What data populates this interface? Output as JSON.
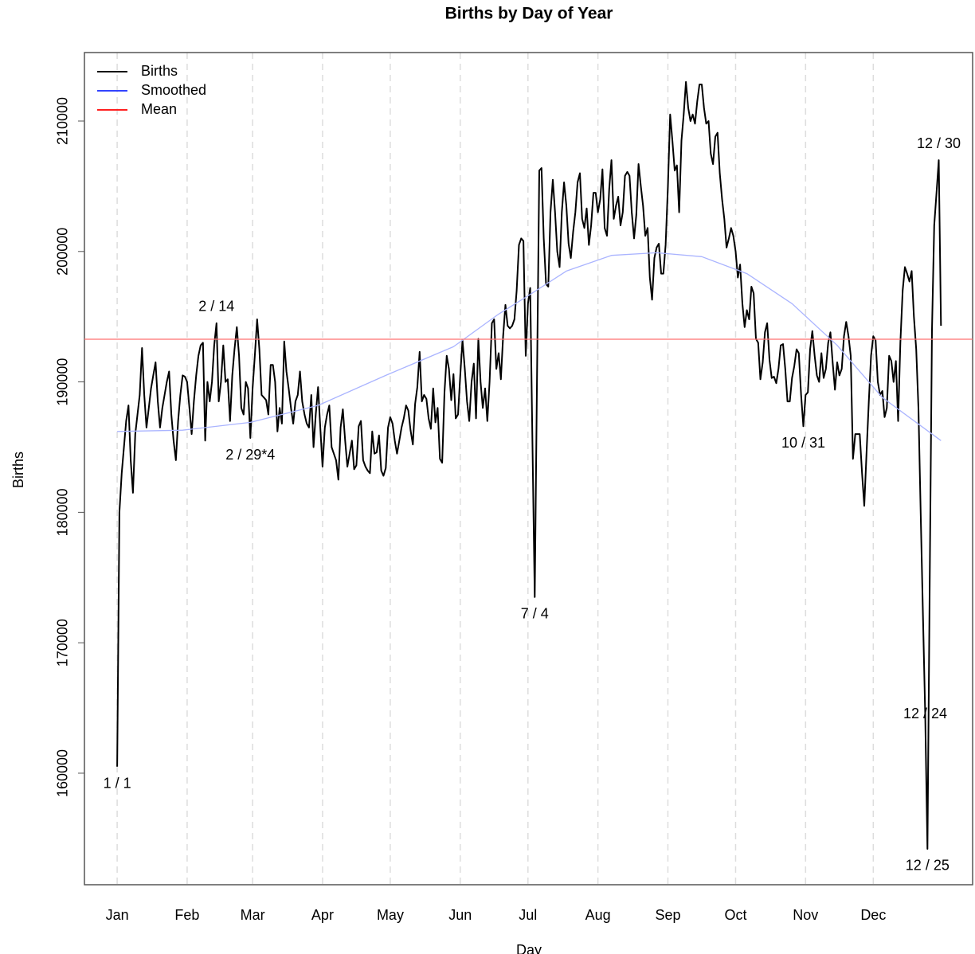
{
  "chart_data": {
    "type": "line",
    "title": "Births by Day of Year",
    "x_label": "Day",
    "y_label": "Births",
    "xlim": [
      -13.5,
      380
    ],
    "ylim": [
      151450,
      215250
    ],
    "xticks": [
      {
        "value": 1,
        "label": "Jan"
      },
      {
        "value": 32,
        "label": "Feb"
      },
      {
        "value": 61,
        "label": "Mar"
      },
      {
        "value": 92,
        "label": "Apr"
      },
      {
        "value": 122,
        "label": "May"
      },
      {
        "value": 153,
        "label": "Jun"
      },
      {
        "value": 183,
        "label": "Jul"
      },
      {
        "value": 214,
        "label": "Aug"
      },
      {
        "value": 245,
        "label": "Sep"
      },
      {
        "value": 275,
        "label": "Oct"
      },
      {
        "value": 306,
        "label": "Nov"
      },
      {
        "value": 336,
        "label": "Dec"
      }
    ],
    "yticks": [
      160000,
      170000,
      180000,
      190000,
      200000,
      210000
    ],
    "grid": true,
    "legend": "topleft",
    "series": [
      {
        "name": "Births",
        "color": "#000000",
        "x": [
          1,
          2,
          3,
          4,
          5,
          6,
          7,
          8,
          9,
          10,
          11,
          12,
          13,
          14,
          15,
          16,
          17,
          18,
          19,
          20,
          21,
          22,
          23,
          24,
          25,
          26,
          27,
          28,
          29,
          30,
          31,
          32,
          33,
          34,
          35,
          36,
          37,
          38,
          39,
          40,
          41,
          42,
          43,
          44,
          45,
          46,
          47,
          48,
          49,
          50,
          51,
          52,
          53,
          54,
          55,
          56,
          57,
          58,
          59,
          60,
          61,
          62,
          63,
          64,
          65,
          66,
          67,
          68,
          69,
          70,
          71,
          72,
          73,
          74,
          75,
          76,
          77,
          78,
          79,
          80,
          81,
          82,
          83,
          84,
          85,
          86,
          87,
          88,
          89,
          90,
          91,
          92,
          93,
          94,
          95,
          96,
          97,
          98,
          99,
          100,
          101,
          102,
          103,
          104,
          105,
          106,
          107,
          108,
          109,
          110,
          111,
          112,
          113,
          114,
          115,
          116,
          117,
          118,
          119,
          120,
          121,
          122,
          123,
          124,
          125,
          126,
          127,
          128,
          129,
          130,
          131,
          132,
          133,
          134,
          135,
          136,
          137,
          138,
          139,
          140,
          141,
          142,
          143,
          144,
          145,
          146,
          147,
          148,
          149,
          150,
          151,
          152,
          153,
          154,
          155,
          156,
          157,
          158,
          159,
          160,
          161,
          162,
          163,
          164,
          165,
          166,
          167,
          168,
          169,
          170,
          171,
          172,
          173,
          174,
          175,
          176,
          177,
          178,
          179,
          180,
          181,
          182,
          183,
          184,
          185,
          186,
          187,
          188,
          189,
          190,
          191,
          192,
          193,
          194,
          195,
          196,
          197,
          198,
          199,
          200,
          201,
          202,
          203,
          204,
          205,
          206,
          207,
          208,
          209,
          210,
          211,
          212,
          213,
          214,
          215,
          216,
          217,
          218,
          219,
          220,
          221,
          222,
          223,
          224,
          225,
          226,
          227,
          228,
          229,
          230,
          231,
          232,
          233,
          234,
          235,
          236,
          237,
          238,
          239,
          240,
          241,
          242,
          243,
          244,
          245,
          246,
          247,
          248,
          249,
          250,
          251,
          252,
          253,
          254,
          255,
          256,
          257,
          258,
          259,
          260,
          261,
          262,
          263,
          264,
          265,
          266,
          267,
          268,
          269,
          270,
          271,
          272,
          273,
          274,
          275,
          276,
          277,
          278,
          279,
          280,
          281,
          282,
          283,
          284,
          285,
          286,
          287,
          288,
          289,
          290,
          291,
          292,
          293,
          294,
          295,
          296,
          297,
          298,
          299,
          300,
          301,
          302,
          303,
          304,
          305,
          306,
          307,
          308,
          309,
          310,
          311,
          312,
          313,
          314,
          315,
          316,
          317,
          318,
          319,
          320,
          321,
          322,
          323,
          324,
          325,
          326,
          327,
          328,
          329,
          330,
          331,
          332,
          333,
          334,
          335,
          336,
          337,
          338,
          339,
          340,
          341,
          342,
          343,
          344,
          345,
          346,
          347,
          348,
          349,
          350,
          351,
          352,
          353,
          354,
          355,
          356,
          357,
          358,
          359,
          360,
          361,
          362,
          363,
          364,
          365,
          366
        ],
        "values": [
          160500,
          180000,
          183000,
          185000,
          187000,
          188200,
          184000,
          181500,
          186000,
          187500,
          189000,
          192600,
          189000,
          186500,
          188000,
          189500,
          190500,
          191500,
          188500,
          186500,
          188000,
          189000,
          190000,
          190800,
          187500,
          185500,
          184000,
          187000,
          189000,
          190500,
          190400,
          190000,
          188000,
          186000,
          188500,
          190500,
          192000,
          192800,
          193000,
          185500,
          190000,
          188500,
          190000,
          192800,
          194500,
          188500,
          190000,
          192800,
          190000,
          190200,
          187000,
          190500,
          192500,
          194200,
          192000,
          188000,
          187500,
          190000,
          189500,
          185700,
          189500,
          192000,
          194800,
          192500,
          189000,
          188800,
          188600,
          187500,
          191300,
          191300,
          190000,
          186200,
          188000,
          186800,
          193100,
          190800,
          189500,
          188000,
          186800,
          188500,
          189000,
          190800,
          188500,
          187500,
          186800,
          186500,
          189000,
          185000,
          187500,
          189600,
          186500,
          183500,
          186500,
          187500,
          188200,
          185000,
          184500,
          184000,
          182500,
          186500,
          187900,
          185500,
          183500,
          184500,
          185500,
          183300,
          183600,
          186600,
          187000,
          184000,
          183500,
          183200,
          183000,
          186200,
          184500,
          184600,
          185900,
          183200,
          182800,
          183400,
          186500,
          187300,
          186800,
          185500,
          184500,
          185500,
          186500,
          187200,
          188200,
          187800,
          186300,
          185200,
          188300,
          189600,
          192300,
          188500,
          189000,
          188700,
          187200,
          186400,
          189500,
          186900,
          188000,
          184100,
          183800,
          189200,
          192000,
          191000,
          188600,
          190600,
          187200,
          187500,
          190500,
          193200,
          191000,
          188500,
          187000,
          190000,
          191400,
          187200,
          193300,
          190000,
          188000,
          189500,
          187000,
          190000,
          194500,
          194800,
          191000,
          192200,
          190200,
          193500,
          195900,
          194300,
          194100,
          194300,
          194800,
          197000,
          200500,
          201000,
          200800,
          192000,
          196000,
          197200,
          185000,
          173500,
          190000,
          206200,
          206400,
          201000,
          197500,
          197300,
          203000,
          205500,
          203000,
          200000,
          198800,
          203000,
          205300,
          203500,
          200600,
          199500,
          201500,
          203000,
          205300,
          206000,
          202500,
          201800,
          203300,
          200500,
          202000,
          204500,
          204500,
          203000,
          204000,
          206300,
          201800,
          201200,
          204800,
          207000,
          202500,
          203500,
          204200,
          202000,
          203000,
          205800,
          206100,
          205800,
          203000,
          201000,
          202800,
          206700,
          205000,
          203500,
          201200,
          201800,
          198000,
          196300,
          199500,
          200300,
          200600,
          198300,
          198300,
          200500,
          205000,
          210500,
          208500,
          206200,
          206600,
          203000,
          208500,
          210500,
          213000,
          211000,
          210000,
          210500,
          209800,
          211500,
          212800,
          212800,
          211000,
          209800,
          210000,
          207500,
          206700,
          208800,
          209100,
          206000,
          204000,
          202500,
          200300,
          201000,
          201800,
          201200,
          200000,
          198000,
          199000,
          196000,
          194200,
          195500,
          194800,
          197300,
          196800,
          193300,
          193000,
          190200,
          191500,
          193800,
          194500,
          191700,
          190300,
          190400,
          189900,
          191000,
          192800,
          192900,
          191000,
          188500,
          188500,
          190300,
          191200,
          192500,
          192200,
          189000,
          186600,
          189000,
          189200,
          192500,
          193900,
          192000,
          190500,
          190000,
          192200,
          190300,
          191000,
          193000,
          193800,
          191500,
          189400,
          191500,
          190500,
          191000,
          193500,
          194600,
          193500,
          192000,
          184100,
          186000,
          186000,
          186000,
          183000,
          180500,
          184500,
          188500,
          192000,
          193500,
          193200,
          190000,
          189000,
          189300,
          187300,
          188000,
          192000,
          191600,
          190000,
          191600,
          187000,
          193000,
          197000,
          198800,
          198300,
          197700,
          198500,
          195000,
          192500,
          188000,
          180000,
          172000,
          164500,
          154200,
          175000,
          194000,
          202000,
          204500,
          207000,
          194300
        ]
      },
      {
        "name": "Smoothed",
        "color": "#aab4ff",
        "x": [
          1,
          30,
          60,
          90,
          120,
          150,
          170,
          183,
          200,
          220,
          240,
          260,
          280,
          300,
          320,
          340,
          366
        ],
        "values": [
          186200,
          186300,
          186900,
          188200,
          190500,
          192700,
          195200,
          196600,
          198500,
          199700,
          199900,
          199600,
          198300,
          196000,
          192800,
          188800,
          185500
        ]
      },
      {
        "name": "Mean",
        "color": "#ff7070",
        "value": 193270
      }
    ],
    "annotations": [
      {
        "text": "1 / 1",
        "x": 1
      },
      {
        "text": "2 / 14",
        "x": 45
      },
      {
        "text": "2 / 29*4",
        "x": 60
      },
      {
        "text": "7 / 4",
        "x": 186
      },
      {
        "text": "10 / 31",
        "x": 305
      },
      {
        "text": "12 / 24",
        "x": 359
      },
      {
        "text": "12 / 25",
        "x": 360
      },
      {
        "text": "12 / 30",
        "x": 365
      }
    ]
  }
}
